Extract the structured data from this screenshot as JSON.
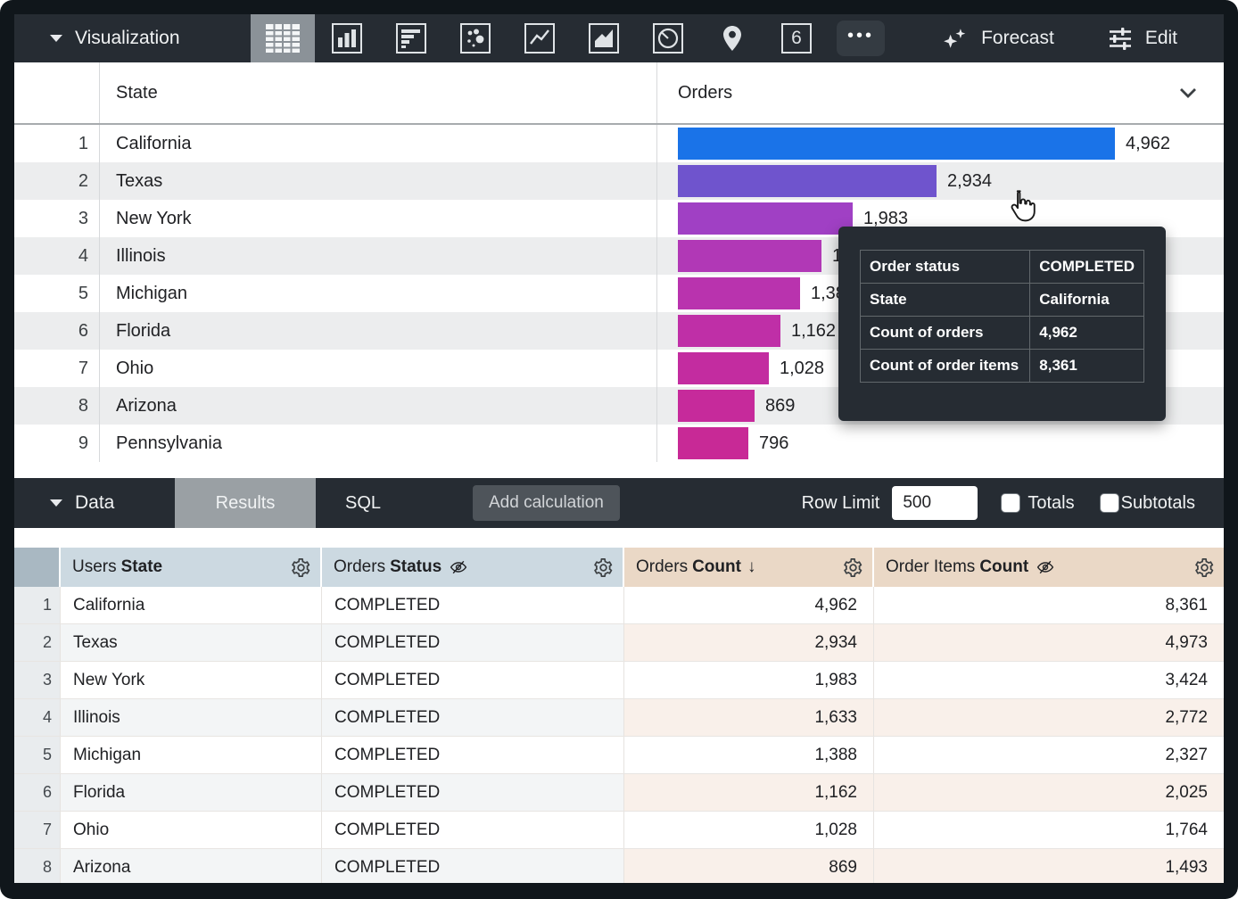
{
  "viz_toolbar": {
    "title": "Visualization",
    "icons": [
      {
        "name": "table-chart-icon",
        "glyph": "grid",
        "selected": true
      },
      {
        "name": "column-chart-icon",
        "glyph": "vertical-bars",
        "selected": false
      },
      {
        "name": "bar-chart-icon",
        "glyph": "horizontal-bars",
        "selected": false
      },
      {
        "name": "scatter-chart-icon",
        "glyph": "dots",
        "selected": false
      },
      {
        "name": "line-chart-icon",
        "glyph": "zigzag-line",
        "selected": false
      },
      {
        "name": "area-chart-icon",
        "glyph": "filled-area",
        "selected": false
      },
      {
        "name": "pie-chart-icon",
        "glyph": "pie-circle",
        "selected": false
      },
      {
        "name": "map-chart-icon",
        "glyph": "location-pin",
        "selected": false
      },
      {
        "name": "single-value-icon",
        "glyph": "boxed-number",
        "text": "6",
        "selected": false
      },
      {
        "name": "more-icon",
        "glyph": "ellipsis",
        "text": "•••",
        "selected": false
      }
    ],
    "forecast_label": "Forecast",
    "edit_label": "Edit"
  },
  "viz_table": {
    "columns": {
      "state": "State",
      "orders": "Orders"
    },
    "max_value": 4962,
    "rows": [
      {
        "n": "1",
        "state": "California",
        "value": 4962,
        "value_label": "4,962",
        "color": "#1a73e8"
      },
      {
        "n": "2",
        "state": "Texas",
        "value": 2934,
        "value_label": "2,934",
        "color": "#6f54cd"
      },
      {
        "n": "3",
        "state": "New York",
        "value": 1983,
        "value_label": "1,983",
        "color": "#a040c4"
      },
      {
        "n": "4",
        "state": "Illinois",
        "value": 1633,
        "value_label": "1,633",
        "color": "#b138b6"
      },
      {
        "n": "5",
        "state": "Michigan",
        "value": 1388,
        "value_label": "1,388",
        "color": "#b933ae"
      },
      {
        "n": "6",
        "state": "Florida",
        "value": 1162,
        "value_label": "1,162",
        "color": "#bf2fa7"
      },
      {
        "n": "7",
        "state": "Ohio",
        "value": 1028,
        "value_label": "1,028",
        "color": "#c32ca0"
      },
      {
        "n": "8",
        "state": "Arizona",
        "value": 869,
        "value_label": "869",
        "color": "#c62a9b"
      },
      {
        "n": "9",
        "state": "Pennsylvania",
        "value": 796,
        "value_label": "796",
        "color": "#c82996"
      }
    ]
  },
  "tooltip": {
    "rows": [
      {
        "label": "Order status",
        "value": "COMPLETED"
      },
      {
        "label": "State",
        "value": "California"
      },
      {
        "label": "Count of orders",
        "value": "4,962"
      },
      {
        "label": "Count of order items",
        "value": "8,361"
      }
    ]
  },
  "data_toolbar": {
    "title": "Data",
    "tabs": [
      {
        "label": "Results",
        "active": true
      },
      {
        "label": "SQL",
        "active": false
      }
    ],
    "add_calculation_label": "Add calculation",
    "row_limit_label": "Row Limit",
    "row_limit_value": "500",
    "totals_label": "Totals",
    "totals_checked": false,
    "subtotals_label": "Subtotals",
    "subtotals_checked": false
  },
  "data_table": {
    "columns": [
      {
        "prefix": "Users",
        "name": "State",
        "type": "dimension",
        "hidden": false,
        "sorted": false
      },
      {
        "prefix": "Orders",
        "name": "Status",
        "type": "dimension",
        "hidden": true,
        "sorted": false
      },
      {
        "prefix": "Orders",
        "name": "Count",
        "type": "measure",
        "hidden": false,
        "sorted": true
      },
      {
        "prefix": "Order Items",
        "name": "Count",
        "type": "measure",
        "hidden": true,
        "sorted": false
      }
    ],
    "rows": [
      {
        "n": "1",
        "cells": [
          "California",
          "COMPLETED",
          "4,962",
          "8,361"
        ]
      },
      {
        "n": "2",
        "cells": [
          "Texas",
          "COMPLETED",
          "2,934",
          "4,973"
        ]
      },
      {
        "n": "3",
        "cells": [
          "New York",
          "COMPLETED",
          "1,983",
          "3,424"
        ]
      },
      {
        "n": "4",
        "cells": [
          "Illinois",
          "COMPLETED",
          "1,633",
          "2,772"
        ]
      },
      {
        "n": "5",
        "cells": [
          "Michigan",
          "COMPLETED",
          "1,388",
          "2,327"
        ]
      },
      {
        "n": "6",
        "cells": [
          "Florida",
          "COMPLETED",
          "1,162",
          "2,025"
        ]
      },
      {
        "n": "7",
        "cells": [
          "Ohio",
          "COMPLETED",
          "1,028",
          "1,764"
        ]
      },
      {
        "n": "8",
        "cells": [
          "Arizona",
          "COMPLETED",
          "869",
          "1,493"
        ]
      }
    ]
  },
  "chart_data": {
    "type": "bar",
    "orientation": "horizontal",
    "categories": [
      "California",
      "Texas",
      "New York",
      "Illinois",
      "Michigan",
      "Florida",
      "Ohio",
      "Arizona",
      "Pennsylvania"
    ],
    "values": [
      4962,
      2934,
      1983,
      1633,
      1388,
      1162,
      1028,
      869,
      796
    ],
    "series_label": "Orders",
    "xlim": [
      0,
      4962
    ],
    "bar_colors": [
      "#1a73e8",
      "#6f54cd",
      "#a040c4",
      "#b138b6",
      "#b933ae",
      "#bf2fa7",
      "#c32ca0",
      "#c62a9b",
      "#c82996"
    ]
  },
  "colors": {
    "toolbar_bg": "#262c33",
    "selected_tile": "#8b9298",
    "results_tab": "#9aa0a4",
    "dimension_header_bg": "#ccd9e1",
    "measure_header_bg": "#ead8c6",
    "accent_blue": "#1a73e8"
  }
}
